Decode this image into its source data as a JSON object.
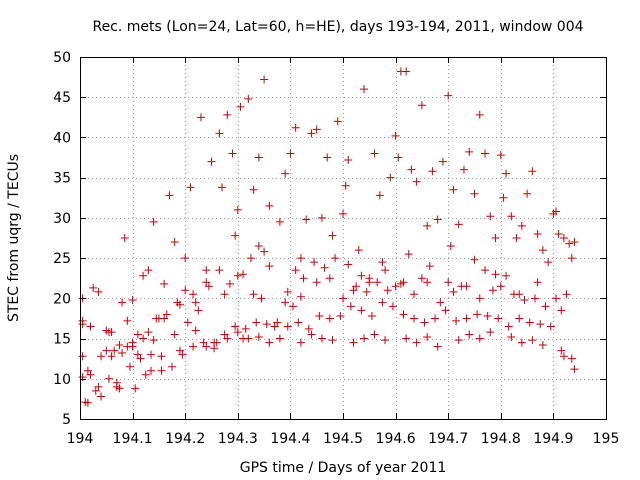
{
  "chart_data": {
    "type": "scatter",
    "title": "Rec. mets (Lon=24, Lat=60, h=HE), days 193-194, 2011, window 004",
    "xlabel": "GPS time / Days of year 2011",
    "ylabel": "STEC from uqrg / TECUs",
    "xlim": [
      194,
      195
    ],
    "ylim": [
      5,
      50
    ],
    "xticks": [
      "194",
      "194.1",
      "194.2",
      "194.3",
      "194.4",
      "194.5",
      "194.6",
      "194.7",
      "194.8",
      "194.9",
      "195"
    ],
    "yticks": [
      "5",
      "10",
      "15",
      "20",
      "25",
      "30",
      "35",
      "40",
      "45",
      "50"
    ],
    "grid": true,
    "marker": "plus",
    "color": "#cc0000",
    "x": [
      194.005,
      194.005,
      194.005,
      194.005,
      194.005,
      194.01,
      194.015,
      194.02,
      194.025,
      194.03,
      194.035,
      194.04,
      194.05,
      194.05,
      194.055,
      194.06,
      194.065,
      194.07,
      194.075,
      194.08,
      194.085,
      194.09,
      194.1,
      194.1,
      194.105,
      194.11,
      194.12,
      194.125,
      194.13,
      194.135,
      194.14,
      194.15,
      194.155,
      194.16,
      194.17,
      194.18,
      194.19,
      194.2,
      194.2,
      194.21,
      194.22,
      194.23,
      194.24,
      194.25,
      194.255,
      194.265,
      194.27,
      194.28,
      194.29,
      194.295,
      194.3,
      194.305,
      194.31,
      194.32,
      194.33,
      194.34,
      194.345,
      194.35,
      194.36,
      194.37,
      194.38,
      194.39,
      194.4,
      194.405,
      194.41,
      194.42,
      194.43,
      194.44,
      194.45,
      194.46,
      194.47,
      194.48,
      194.49,
      194.5,
      194.505,
      194.51,
      194.52,
      194.53,
      194.54,
      194.55,
      194.56,
      194.57,
      194.58,
      194.59,
      194.6,
      194.605,
      194.61,
      194.62,
      194.63,
      194.64,
      194.65,
      194.66,
      194.67,
      194.68,
      194.69,
      194.7,
      194.705,
      194.71,
      194.72,
      194.73,
      194.74,
      194.75,
      194.76,
      194.77,
      194.78,
      194.79,
      194.8,
      194.805,
      194.81,
      194.82,
      194.83,
      194.84,
      194.85,
      194.86,
      194.87,
      194.88,
      194.89,
      194.9,
      194.905,
      194.91,
      194.92,
      194.93,
      194.935,
      194.94,
      194.02,
      194.04,
      194.06,
      194.08,
      194.1,
      194.12,
      194.14,
      194.16,
      194.18,
      194.22,
      194.24,
      194.26,
      194.28,
      194.3,
      194.32,
      194.34,
      194.36,
      194.38,
      194.42,
      194.44,
      194.46,
      194.48,
      194.52,
      194.54,
      194.56,
      194.58,
      194.62,
      194.64,
      194.66,
      194.68,
      194.72,
      194.74,
      194.76,
      194.78,
      194.82,
      194.84,
      194.86,
      194.88,
      194.92,
      194.94,
      194.015,
      194.035,
      194.055,
      194.075,
      194.095,
      194.115,
      194.135,
      194.155,
      194.175,
      194.195,
      194.215,
      194.235,
      194.255,
      194.275,
      194.295,
      194.315,
      194.335,
      194.355,
      194.375,
      194.395,
      194.415,
      194.435,
      194.455,
      194.475,
      194.495,
      194.515,
      194.535,
      194.555,
      194.575,
      194.595,
      194.615,
      194.635,
      194.655,
      194.675,
      194.695,
      194.715,
      194.735,
      194.755,
      194.775,
      194.795,
      194.815,
      194.835,
      194.855,
      194.875,
      194.895,
      194.915,
      194.935,
      194.165,
      194.19,
      194.215,
      194.24,
      194.265,
      194.285,
      194.31,
      194.325,
      194.34,
      194.35,
      194.395,
      194.41,
      194.425,
      194.445,
      194.465,
      194.485,
      194.51,
      194.535,
      194.55,
      194.575,
      194.6,
      194.615,
      194.625,
      194.65,
      194.665,
      194.7,
      194.725,
      194.75,
      194.77,
      194.79,
      194.81,
      194.835,
      194.87,
      194.905,
      194.925,
      194.07,
      194.09,
      194.11,
      194.13,
      194.145,
      194.185,
      194.205,
      194.225,
      194.245,
      194.275,
      194.3,
      194.33,
      194.36,
      194.39,
      194.42,
      194.45,
      194.475,
      194.5,
      194.525,
      194.545,
      194.565,
      194.585,
      194.61,
      194.635,
      194.66,
      194.685,
      194.71,
      194.735,
      194.76,
      194.785,
      194.8,
      194.825,
      194.845,
      194.865,
      194.885,
      194.915
    ],
    "y": [
      20.0,
      17.2,
      16.8,
      12.8,
      10.2,
      7.1,
      7.0,
      10.5,
      21.3,
      8.5,
      20.8,
      7.8,
      13.5,
      16.0,
      15.8,
      12.8,
      13.5,
      9.0,
      14.2,
      19.5,
      27.5,
      17.2,
      14.0,
      19.8,
      8.8,
      15.5,
      22.8,
      10.5,
      23.5,
      13.0,
      29.5,
      17.5,
      11.0,
      21.8,
      32.8,
      27.0,
      13.5,
      25.0,
      21.0,
      33.8,
      19.5,
      42.5,
      23.5,
      37.0,
      14.5,
      40.5,
      33.8,
      42.8,
      38.0,
      27.8,
      31.0,
      43.8,
      15.0,
      44.8,
      33.5,
      37.5,
      20.0,
      47.2,
      31.5,
      16.5,
      29.5,
      35.5,
      38.0,
      19.0,
      41.2,
      25.0,
      29.8,
      40.5,
      41.0,
      30.0,
      37.5,
      27.8,
      42.0,
      30.5,
      34.0,
      37.2,
      21.0,
      26.0,
      46.0,
      22.5,
      38.0,
      32.8,
      23.5,
      35.0,
      40.2,
      37.5,
      48.2,
      48.2,
      36.0,
      34.5,
      44.0,
      29.0,
      35.8,
      29.8,
      37.0,
      45.2,
      26.5,
      33.5,
      29.2,
      36.0,
      38.2,
      33.0,
      42.8,
      38.0,
      30.2,
      27.5,
      37.8,
      32.5,
      35.5,
      30.2,
      27.5,
      29.0,
      33.0,
      35.8,
      28.0,
      26.0,
      24.5,
      30.5,
      30.8,
      28.0,
      27.5,
      26.8,
      25.0,
      27.0,
      16.5,
      12.8,
      15.8,
      13.2,
      14.5,
      15.0,
      14.8,
      17.5,
      15.5,
      16.0,
      14.0,
      14.5,
      15.0,
      15.8,
      15.0,
      15.2,
      14.5,
      15.0,
      14.5,
      15.5,
      15.0,
      14.8,
      14.5,
      15.0,
      15.5,
      14.8,
      15.0,
      14.5,
      15.2,
      14.0,
      14.8,
      15.5,
      15.0,
      15.8,
      15.2,
      14.5,
      14.8,
      14.2,
      12.8,
      11.2,
      11.0,
      9.0,
      10.0,
      8.8,
      11.5,
      12.5,
      11.0,
      12.8,
      11.5,
      13.0,
      14.0,
      14.5,
      13.8,
      15.5,
      16.5,
      16.2,
      17.0,
      16.8,
      17.0,
      16.5,
      17.0,
      16.2,
      17.8,
      17.5,
      17.8,
      19.0,
      18.5,
      17.8,
      19.5,
      19.0,
      18.0,
      17.5,
      17.0,
      17.5,
      18.5,
      17.2,
      17.5,
      18.0,
      17.8,
      17.5,
      16.5,
      17.5,
      17.0,
      16.8,
      16.5,
      13.5,
      12.5,
      18.0,
      19.2,
      20.5,
      22.0,
      23.5,
      21.8,
      23.0,
      25.0,
      26.5,
      25.8,
      20.8,
      23.5,
      22.5,
      24.5,
      23.8,
      25.0,
      24.2,
      22.8,
      22.0,
      24.5,
      21.5,
      22.0,
      25.5,
      22.5,
      24.0,
      22.0,
      21.5,
      24.8,
      23.5,
      23.0,
      22.8,
      20.5,
      22.0,
      20.0,
      20.5,
      9.5,
      14.0,
      13.0,
      15.8,
      17.5,
      19.5,
      17.0,
      18.5,
      21.5,
      20.5,
      22.8,
      20.5,
      24.0,
      19.5,
      20.2,
      22.0,
      22.5,
      20.0,
      21.5,
      20.8,
      22.0,
      21.0,
      21.8,
      20.5,
      22.0,
      19.5,
      20.8,
      21.5,
      20.0,
      21.0,
      21.5,
      20.5,
      19.8,
      20.0,
      19.0,
      18.5
    ]
  }
}
